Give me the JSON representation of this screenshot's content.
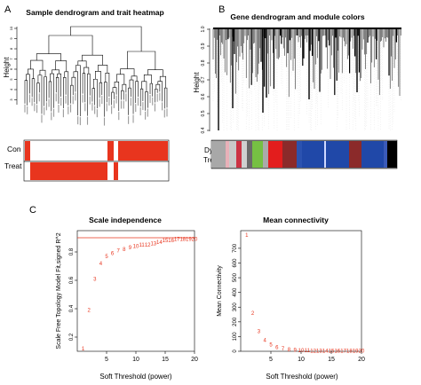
{
  "panels": {
    "a": {
      "letter": "A",
      "title": "Sample dendrogram and trait heatmap",
      "ylabel": "Height",
      "yticks": [
        "10",
        "9",
        "8",
        "7",
        "6",
        "5",
        "4",
        "3"
      ],
      "trait_rows": [
        "Con",
        "Treat"
      ],
      "trait_colors": {
        "red": "#e8351e",
        "white": "#ffffff"
      }
    },
    "b": {
      "letter": "B",
      "title": "Gene dendrogram and module colors",
      "ylabel": "Height",
      "yticks": [
        "1.0",
        "0.9",
        "0.8",
        "0.7",
        "0.6",
        "0.5",
        "0.4"
      ],
      "color_row_label_1": "Dynamic",
      "color_row_label_2": "Tree Cut"
    },
    "c": {
      "letter": "C"
    }
  },
  "chart_data": [
    {
      "type": "scatter",
      "title": "Scale independence",
      "xlabel": "Soft Threshold (power)",
      "ylabel": "Scale Free Topology Model Fit,signed R^2",
      "xlim": [
        0,
        20
      ],
      "ylim": [
        0.1,
        0.95
      ],
      "x_ticks": [
        "5",
        "10",
        "15",
        "20"
      ],
      "y_ticks": [
        "0.2",
        "0.4",
        "0.6",
        "0.8"
      ],
      "hline": 0.9,
      "marker": "power number label",
      "points": [
        {
          "x": 1,
          "y": 0.12,
          "label": "1"
        },
        {
          "x": 2,
          "y": 0.39,
          "label": "2"
        },
        {
          "x": 3,
          "y": 0.61,
          "label": "3"
        },
        {
          "x": 4,
          "y": 0.72,
          "label": "4"
        },
        {
          "x": 5,
          "y": 0.77,
          "label": "5"
        },
        {
          "x": 6,
          "y": 0.79,
          "label": "6"
        },
        {
          "x": 7,
          "y": 0.81,
          "label": "7"
        },
        {
          "x": 8,
          "y": 0.82,
          "label": "8"
        },
        {
          "x": 9,
          "y": 0.83,
          "label": "9"
        },
        {
          "x": 10,
          "y": 0.84,
          "label": "10"
        },
        {
          "x": 11,
          "y": 0.85,
          "label": "11"
        },
        {
          "x": 12,
          "y": 0.85,
          "label": "12"
        },
        {
          "x": 13,
          "y": 0.86,
          "label": "13"
        },
        {
          "x": 14,
          "y": 0.87,
          "label": "14"
        },
        {
          "x": 15,
          "y": 0.88,
          "label": "15"
        },
        {
          "x": 16,
          "y": 0.88,
          "label": "16"
        },
        {
          "x": 17,
          "y": 0.89,
          "label": "17"
        },
        {
          "x": 18,
          "y": 0.89,
          "label": "18"
        },
        {
          "x": 19,
          "y": 0.89,
          "label": "19"
        },
        {
          "x": 20,
          "y": 0.89,
          "label": "20"
        }
      ],
      "line_color": "#e8351e",
      "point_color": "#e8351e"
    },
    {
      "type": "scatter",
      "title": "Mean connectivity",
      "xlabel": "Soft Threshold (power)",
      "ylabel": "Mean Connectivity",
      "xlim": [
        0,
        20
      ],
      "ylim": [
        0,
        820
      ],
      "x_ticks": [
        "5",
        "10",
        "15",
        "20"
      ],
      "y_ticks": [
        "0",
        "100",
        "200",
        "300",
        "400",
        "500",
        "600",
        "700"
      ],
      "marker": "power number label",
      "points": [
        {
          "x": 1,
          "y": 790,
          "label": "1"
        },
        {
          "x": 2,
          "y": 260,
          "label": "2"
        },
        {
          "x": 3,
          "y": 135,
          "label": "3"
        },
        {
          "x": 4,
          "y": 75,
          "label": "4"
        },
        {
          "x": 5,
          "y": 45,
          "label": "5"
        },
        {
          "x": 6,
          "y": 28,
          "label": "6"
        },
        {
          "x": 7,
          "y": 18,
          "label": "7"
        },
        {
          "x": 8,
          "y": 12,
          "label": "8"
        },
        {
          "x": 9,
          "y": 8,
          "label": "9"
        },
        {
          "x": 10,
          "y": 6,
          "label": "10"
        },
        {
          "x": 11,
          "y": 5,
          "label": "11"
        },
        {
          "x": 12,
          "y": 4,
          "label": "12"
        },
        {
          "x": 13,
          "y": 3,
          "label": "13"
        },
        {
          "x": 14,
          "y": 3,
          "label": "14"
        },
        {
          "x": 15,
          "y": 3,
          "label": "15"
        },
        {
          "x": 16,
          "y": 3,
          "label": "16"
        },
        {
          "x": 17,
          "y": 3,
          "label": "17"
        },
        {
          "x": 18,
          "y": 3,
          "label": "18"
        },
        {
          "x": 19,
          "y": 3,
          "label": "19"
        },
        {
          "x": 20,
          "y": 3,
          "label": "20"
        }
      ],
      "point_color": "#e8351e"
    }
  ]
}
